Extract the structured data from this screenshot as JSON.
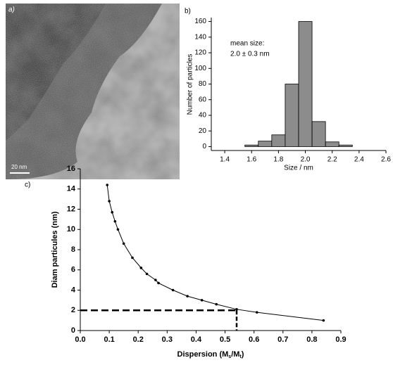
{
  "image_panel": {
    "label": "a)",
    "scale_bar": "20 nm"
  },
  "chart_data": [
    {
      "type": "histogram",
      "panel_label": "b)",
      "x_label": "Size / nm",
      "y_label": "Number of particles",
      "annotations": [
        "mean size:",
        "2.0 ± 0.3 nm"
      ],
      "bins": [
        1.55,
        1.65,
        1.75,
        1.85,
        1.95,
        2.05,
        2.15,
        2.25,
        2.35
      ],
      "values": [
        2,
        7,
        15,
        80,
        160,
        32,
        6,
        2
      ],
      "color": "#8c8c8c",
      "xlim": [
        1.3,
        2.6
      ],
      "xticks": [
        1.4,
        1.6,
        1.8,
        {
          "value": 2.0,
          "label": "2.0"
        },
        2.2,
        2.4,
        2.6
      ],
      "ylim": [
        -5,
        165
      ],
      "yticks": [
        0,
        20,
        40,
        60,
        80,
        100,
        120,
        140,
        160
      ]
    },
    {
      "type": "line",
      "panel_label": "c)",
      "y_label": "Diam particules (nm)",
      "x_label_parts": [
        "Dispersion (M",
        "s",
        "/M",
        "t",
        ")"
      ],
      "x": [
        0.093,
        0.1,
        0.11,
        0.12,
        0.13,
        0.15,
        0.18,
        0.21,
        0.23,
        0.26,
        0.27,
        0.32,
        0.37,
        0.42,
        0.47,
        0.54,
        0.61,
        0.84
      ],
      "values": [
        14.4,
        12.8,
        11.7,
        10.8,
        10.0,
        8.6,
        7.2,
        6.2,
        5.6,
        5.0,
        4.7,
        4.0,
        3.4,
        3.0,
        2.6,
        2.1,
        1.8,
        1.0
      ],
      "color": "#000000",
      "guide": {
        "x": 0.54,
        "y": 2
      },
      "xlim": [
        0,
        0.9
      ],
      "xticks": [
        {
          "value": 0,
          "label": "0.0"
        },
        0.1,
        0.2,
        0.3,
        0.4,
        0.5,
        0.6,
        0.7,
        0.8,
        0.9
      ],
      "ylim": [
        0,
        16
      ],
      "yticks": [
        0,
        2,
        4,
        6,
        8,
        10,
        12,
        14,
        16
      ]
    }
  ]
}
